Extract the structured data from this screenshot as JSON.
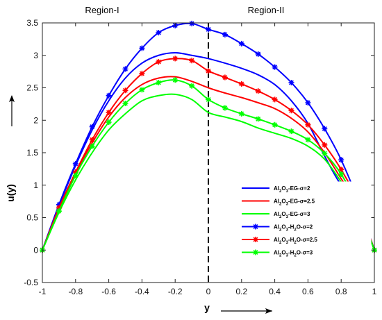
{
  "chart_data": {
    "type": "line",
    "xlabel": "y",
    "ylabel": "u(y)",
    "xlim": [
      -1,
      1
    ],
    "ylim": [
      -0.5,
      3.5
    ],
    "xticks": [
      "-1",
      "-0.8",
      "-0.6",
      "-0.4",
      "-0.2",
      "0",
      "0.2",
      "0.4",
      "0.6",
      "0.8",
      "1"
    ],
    "yticks": [
      "-0.5",
      "0",
      "0.5",
      "1",
      "1.5",
      "2",
      "2.5",
      "3",
      "3.5"
    ],
    "regions": [
      "Region-I",
      "Region-II"
    ],
    "interface_x": 0,
    "grid": false,
    "legend_position": "lower-right",
    "series": [
      {
        "name": "Al2O3-EG-σ=2",
        "color": "#0000ff",
        "marker": "none",
        "x": [
          -1,
          -0.9,
          -0.8,
          -0.7,
          -0.6,
          -0.5,
          -0.4,
          -0.3,
          -0.2,
          -0.1,
          0,
          0.1,
          0.2,
          0.3,
          0.4,
          0.5,
          0.6,
          0.7,
          0.8,
          0.9,
          1
        ],
        "y": [
          0,
          0.68,
          1.3,
          1.85,
          2.3,
          2.65,
          2.88,
          3.0,
          3.04,
          3.0,
          2.95,
          2.88,
          2.8,
          2.7,
          2.55,
          2.3,
          1.95,
          1.45,
          1.0,
          0.72,
          0
        ]
      },
      {
        "name": "Al2O3-EG-σ=2.5",
        "color": "#ff0000",
        "marker": "none",
        "x": [
          -1,
          -0.9,
          -0.8,
          -0.7,
          -0.6,
          -0.5,
          -0.4,
          -0.3,
          -0.2,
          -0.1,
          0,
          0.1,
          0.2,
          0.3,
          0.4,
          0.5,
          0.6,
          0.7,
          0.8,
          0.9,
          1
        ],
        "y": [
          0,
          0.62,
          1.18,
          1.65,
          2.05,
          2.35,
          2.55,
          2.65,
          2.67,
          2.6,
          2.5,
          2.42,
          2.35,
          2.27,
          2.18,
          2.03,
          1.82,
          1.5,
          1.1,
          0.7,
          0
        ]
      },
      {
        "name": "Al2O3-EG-σ=3",
        "color": "#00ff00",
        "marker": "none",
        "x": [
          -1,
          -0.9,
          -0.8,
          -0.7,
          -0.6,
          -0.5,
          -0.4,
          -0.3,
          -0.2,
          -0.1,
          0,
          0.1,
          0.2,
          0.3,
          0.4,
          0.5,
          0.6,
          0.7,
          0.8,
          0.9,
          1
        ],
        "y": [
          0,
          0.58,
          1.08,
          1.5,
          1.85,
          2.1,
          2.3,
          2.38,
          2.4,
          2.32,
          2.12,
          2.05,
          1.98,
          1.88,
          1.8,
          1.72,
          1.6,
          1.4,
          1.05,
          0.65,
          0
        ]
      },
      {
        "name": "Al2O3-H2O-σ=2",
        "color": "#0000ff",
        "marker": "asterisk",
        "x": [
          -1,
          -0.9,
          -0.8,
          -0.7,
          -0.6,
          -0.5,
          -0.4,
          -0.3,
          -0.2,
          -0.1,
          0,
          0.1,
          0.2,
          0.3,
          0.4,
          0.5,
          0.6,
          0.7,
          0.8,
          0.9,
          1
        ],
        "y": [
          0,
          0.7,
          1.33,
          1.9,
          2.38,
          2.79,
          3.11,
          3.35,
          3.46,
          3.49,
          3.4,
          3.32,
          3.18,
          3.02,
          2.82,
          2.58,
          2.27,
          1.87,
          1.39,
          0.77,
          0
        ]
      },
      {
        "name": "Al2O3-H2O-σ=2.5",
        "color": "#ff0000",
        "marker": "asterisk",
        "x": [
          -1,
          -0.9,
          -0.8,
          -0.7,
          -0.6,
          -0.5,
          -0.4,
          -0.3,
          -0.2,
          -0.1,
          0,
          0.1,
          0.2,
          0.3,
          0.4,
          0.5,
          0.6,
          0.7,
          0.8,
          0.9,
          1
        ],
        "y": [
          0,
          0.65,
          1.2,
          1.7,
          2.12,
          2.46,
          2.72,
          2.9,
          2.95,
          2.92,
          2.76,
          2.66,
          2.56,
          2.45,
          2.32,
          2.15,
          1.93,
          1.62,
          1.24,
          0.75,
          0
        ]
      },
      {
        "name": "Al2O3-H2O-σ=3",
        "color": "#00ff00",
        "marker": "asterisk",
        "x": [
          -1,
          -0.9,
          -0.8,
          -0.7,
          -0.6,
          -0.5,
          -0.4,
          -0.3,
          -0.2,
          -0.1,
          0,
          0.1,
          0.2,
          0.3,
          0.4,
          0.5,
          0.6,
          0.7,
          0.8,
          0.9,
          1
        ],
        "y": [
          0,
          0.6,
          1.15,
          1.6,
          1.97,
          2.26,
          2.47,
          2.58,
          2.62,
          2.53,
          2.32,
          2.19,
          2.1,
          2.02,
          1.93,
          1.83,
          1.7,
          1.49,
          1.17,
          0.68,
          0
        ]
      }
    ]
  }
}
